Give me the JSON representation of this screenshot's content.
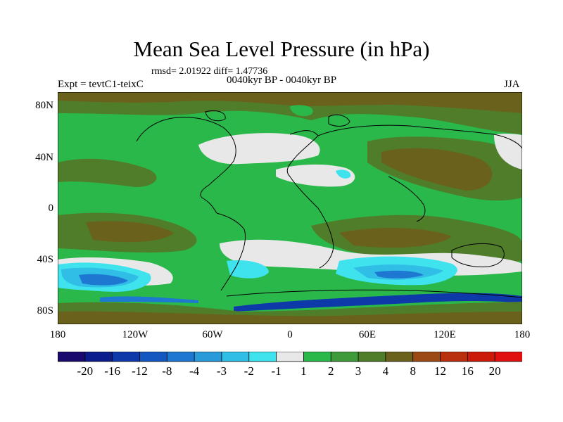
{
  "title": "Mean Sea Level Pressure (in hPa)",
  "stats": "rmsd= 2.01922 diff= 1.47736",
  "left_label": "Expt = tevtC1-teixC",
  "center_label": "0040kyr BP - 0040kyr BP",
  "right_label": "JJA",
  "lat_ticks": [
    "80N",
    "40N",
    "0",
    "40S",
    "80S"
  ],
  "lon_ticks": [
    "180",
    "120W",
    "60W",
    "0",
    "60E",
    "120E",
    "180"
  ],
  "colorbar": {
    "labels": [
      "-20",
      "-16",
      "-12",
      "-8",
      "-4",
      "-3",
      "-2",
      "-1",
      "1",
      "2",
      "3",
      "4",
      "8",
      "12",
      "16",
      "20"
    ],
    "colors": [
      "#1a0a6e",
      "#0b1d8c",
      "#0d3aa8",
      "#1457c0",
      "#1e78d2",
      "#2b9ad8",
      "#30bde6",
      "#3ee3ee",
      "#e8e8e8",
      "#2bb84a",
      "#3f9a3a",
      "#4f7d2a",
      "#6a621c",
      "#9c4a14",
      "#b8300e",
      "#cc1a0a",
      "#e01010"
    ]
  }
}
